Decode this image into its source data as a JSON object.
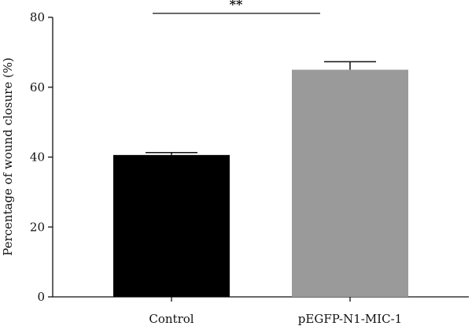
{
  "chart_data": {
    "type": "bar",
    "categories": [
      "Control",
      "pEGFP-N1-MIC-1"
    ],
    "values": [
      40.6,
      65.0
    ],
    "errors": [
      0.7,
      2.3
    ],
    "colors": [
      "#000000",
      "#9a9a9a"
    ],
    "xlabel": "",
    "ylabel": "Percentage of wound closure (%)",
    "ylim": [
      0,
      80
    ],
    "yticks": [
      0,
      20,
      40,
      60,
      80
    ],
    "grid": false,
    "significance": {
      "between": [
        0,
        1
      ],
      "label": "**"
    }
  }
}
